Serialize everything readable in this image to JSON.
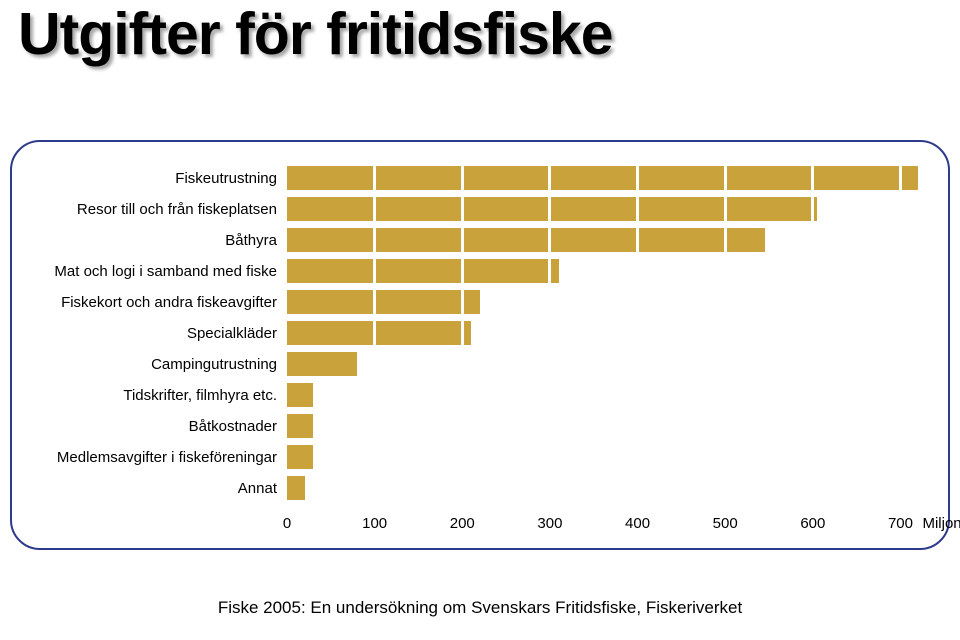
{
  "title": {
    "text": "Utgifter för fritidsfiske",
    "fontsize": 59,
    "color": "#000000"
  },
  "chart": {
    "type": "bar",
    "orientation": "horizontal",
    "border_color": "#2e3a8c",
    "background_color": "#ffffff",
    "bar_color": "#c9a23b",
    "grid_color": "#ffffff",
    "label_color": "#000000",
    "label_fontsize": 15,
    "xlim": [
      0,
      720
    ],
    "ticks": [
      0,
      100,
      200,
      300,
      400,
      500,
      600,
      700
    ],
    "axis_unit": "Miljoner kronor",
    "categories": [
      "Fiskeutrustning",
      "Resor till och från fiskeplatsen",
      "Båthyra",
      "Mat och logi i samband med fiske",
      "Fiskekort och andra fiskeavgifter",
      "Specialkläder",
      "Campingutrustning",
      "Tidskrifter, filmhyra etc.",
      "Båtkostnader",
      "Medlemsavgifter i fiskeföreningar",
      "Annat"
    ],
    "values": [
      720,
      605,
      545,
      310,
      220,
      210,
      80,
      30,
      30,
      30,
      20
    ]
  },
  "footer": {
    "text": "Fiske 2005: En undersökning om Svenskars Fritidsfiske, Fiskeriverket",
    "color": "#000000",
    "fontsize": 17
  }
}
